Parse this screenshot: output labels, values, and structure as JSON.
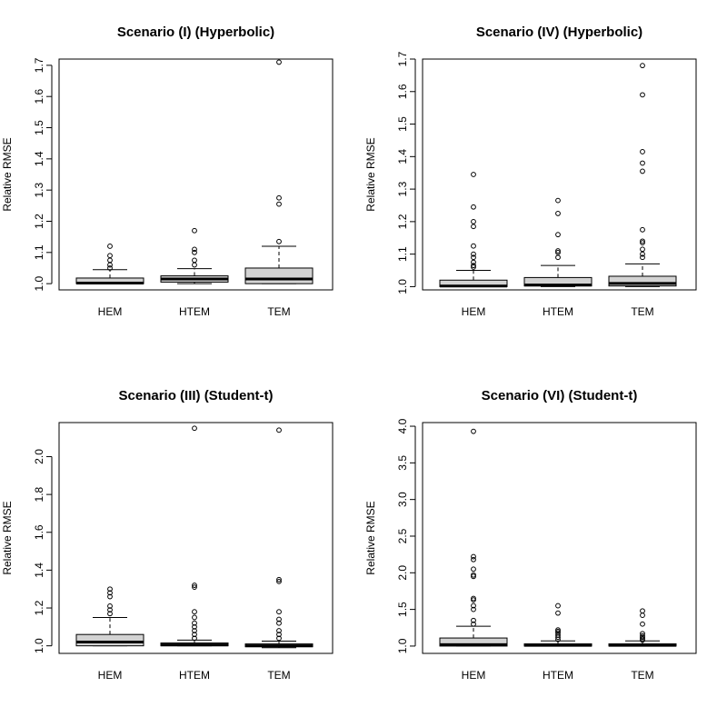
{
  "chart_data": [
    {
      "type": "boxplot",
      "title": "Scenario (I) (Hyperbolic)",
      "ylabel": "Relative RMSE",
      "xlabel": "",
      "ylim": [
        0.98,
        1.72
      ],
      "yticks": [
        1.0,
        1.1,
        1.2,
        1.3,
        1.4,
        1.5,
        1.6,
        1.7
      ],
      "ytick_labels": [
        "1.0",
        "1.1",
        "1.2",
        "1.3",
        "1.4",
        "1.5",
        "1.6",
        "1.7"
      ],
      "categories": [
        "HEM",
        "HTEM",
        "TEM"
      ],
      "boxes": [
        {
          "whisker_low": 1.0,
          "q1": 1.0,
          "median": 1.002,
          "q3": 1.018,
          "whisker_high": 1.045,
          "outliers": [
            1.05,
            1.06,
            1.075,
            1.09,
            1.12
          ]
        },
        {
          "whisker_low": 1.0,
          "q1": 1.005,
          "median": 1.015,
          "q3": 1.025,
          "whisker_high": 1.048,
          "outliers": [
            1.06,
            1.075,
            1.1,
            1.11,
            1.17
          ]
        },
        {
          "whisker_low": 1.0,
          "q1": 1.0,
          "median": 1.015,
          "q3": 1.05,
          "whisker_high": 1.12,
          "outliers": [
            1.135,
            1.255,
            1.275,
            1.71
          ]
        }
      ]
    },
    {
      "type": "boxplot",
      "title": "Scenario (IV) (Hyperbolic)",
      "ylabel": "Relative RMSE",
      "xlabel": "",
      "ylim": [
        0.99,
        1.7
      ],
      "yticks": [
        1.0,
        1.1,
        1.2,
        1.3,
        1.4,
        1.5,
        1.6,
        1.7
      ],
      "ytick_labels": [
        "1.0",
        "1.1",
        "1.2",
        "1.3",
        "1.4",
        "1.5",
        "1.6",
        "1.7"
      ],
      "categories": [
        "HEM",
        "HTEM",
        "TEM"
      ],
      "boxes": [
        {
          "whisker_low": 1.0,
          "q1": 1.0,
          "median": 1.002,
          "q3": 1.02,
          "whisker_high": 1.05,
          "outliers": [
            1.06,
            1.065,
            1.075,
            1.09,
            1.1,
            1.125,
            1.185,
            1.2,
            1.245,
            1.345
          ]
        },
        {
          "whisker_low": 1.0,
          "q1": 1.002,
          "median": 1.005,
          "q3": 1.028,
          "whisker_high": 1.065,
          "outliers": [
            1.09,
            1.105,
            1.11,
            1.16,
            1.225,
            1.265
          ]
        },
        {
          "whisker_low": 1.0,
          "q1": 1.002,
          "median": 1.01,
          "q3": 1.032,
          "whisker_high": 1.07,
          "outliers": [
            1.09,
            1.1,
            1.115,
            1.135,
            1.14,
            1.175,
            1.355,
            1.38,
            1.415,
            1.59,
            1.68
          ]
        }
      ]
    },
    {
      "type": "boxplot",
      "title": "Scenario (III) (Student-t)",
      "ylabel": "Relative RMSE",
      "xlabel": "",
      "ylim": [
        0.96,
        2.18
      ],
      "yticks": [
        1.0,
        1.2,
        1.4,
        1.6,
        1.8,
        2.0
      ],
      "ytick_labels": [
        "1.0",
        "1.2",
        "1.4",
        "1.6",
        "1.8",
        "2.0"
      ],
      "categories": [
        "HEM",
        "HTEM",
        "TEM"
      ],
      "boxes": [
        {
          "whisker_low": 1.0,
          "q1": 1.0,
          "median": 1.02,
          "q3": 1.06,
          "whisker_high": 1.15,
          "outliers": [
            1.17,
            1.19,
            1.21,
            1.26,
            1.28,
            1.3
          ]
        },
        {
          "whisker_low": 1.0,
          "q1": 1.0,
          "median": 1.005,
          "q3": 1.015,
          "whisker_high": 1.03,
          "outliers": [
            1.04,
            1.06,
            1.08,
            1.1,
            1.12,
            1.15,
            1.18,
            1.31,
            1.32,
            2.15
          ]
        },
        {
          "whisker_low": 0.99,
          "q1": 0.995,
          "median": 1.0,
          "q3": 1.01,
          "whisker_high": 1.025,
          "outliers": [
            1.04,
            1.06,
            1.08,
            1.12,
            1.14,
            1.18,
            1.34,
            1.35,
            2.14
          ]
        }
      ]
    },
    {
      "type": "boxplot",
      "title": "Scenario (VI) (Student-t)",
      "ylabel": "Relative RMSE",
      "xlabel": "",
      "ylim": [
        0.9,
        4.05
      ],
      "yticks": [
        1.0,
        1.5,
        2.0,
        2.5,
        3.0,
        3.5,
        4.0
      ],
      "ytick_labels": [
        "1.0",
        "1.5",
        "2.0",
        "2.5",
        "3.0",
        "3.5",
        "4.0"
      ],
      "categories": [
        "HEM",
        "HTEM",
        "TEM"
      ],
      "boxes": [
        {
          "whisker_low": 1.0,
          "q1": 1.0,
          "median": 1.02,
          "q3": 1.11,
          "whisker_high": 1.27,
          "outliers": [
            1.3,
            1.35,
            1.5,
            1.55,
            1.63,
            1.65,
            1.95,
            1.97,
            2.05,
            2.18,
            2.22,
            3.93
          ]
        },
        {
          "whisker_low": 1.0,
          "q1": 1.0,
          "median": 1.01,
          "q3": 1.03,
          "whisker_high": 1.07,
          "outliers": [
            1.09,
            1.12,
            1.15,
            1.18,
            1.2,
            1.22,
            1.45,
            1.55
          ]
        },
        {
          "whisker_low": 1.0,
          "q1": 1.0,
          "median": 1.01,
          "q3": 1.03,
          "whisker_high": 1.07,
          "outliers": [
            1.08,
            1.1,
            1.12,
            1.14,
            1.17,
            1.3,
            1.42,
            1.48
          ]
        }
      ]
    }
  ]
}
